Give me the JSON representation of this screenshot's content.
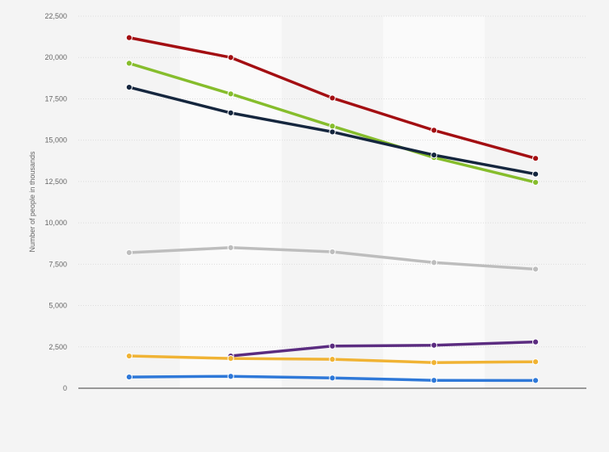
{
  "chart_data": {
    "type": "line",
    "title": "",
    "xlabel": "",
    "ylabel": "Number of people in thousands",
    "ylim": [
      0,
      22500
    ],
    "yticks": [
      0,
      2500,
      5000,
      7500,
      10000,
      12500,
      15000,
      17500,
      20000,
      22500
    ],
    "ytick_labels": [
      "0",
      "2,500",
      "5,000",
      "7,500",
      "10,000",
      "12,500",
      "15,000",
      "17,500",
      "20,000",
      "22,500"
    ],
    "categories": [
      "",
      "",
      "",
      "",
      ""
    ],
    "grid": true,
    "legend": "none",
    "series": [
      {
        "color": "#a30e12",
        "values": [
          21200,
          20000,
          17550,
          15600,
          13900
        ]
      },
      {
        "color": "#86bd2c",
        "values": [
          19650,
          17800,
          15850,
          13950,
          12450
        ]
      },
      {
        "color": "#15263e",
        "values": [
          18200,
          16650,
          15500,
          14100,
          12950
        ]
      },
      {
        "color": "#bdbdbd",
        "values": [
          8200,
          8500,
          8250,
          7600,
          7200
        ]
      },
      {
        "color": "#5b2c80",
        "values": [
          null,
          1950,
          2550,
          2600,
          2800
        ]
      },
      {
        "color": "#f0b334",
        "values": [
          1950,
          1800,
          1750,
          1550,
          1600
        ]
      },
      {
        "color": "#2e78d8",
        "values": [
          680,
          720,
          620,
          480,
          470
        ]
      }
    ]
  }
}
